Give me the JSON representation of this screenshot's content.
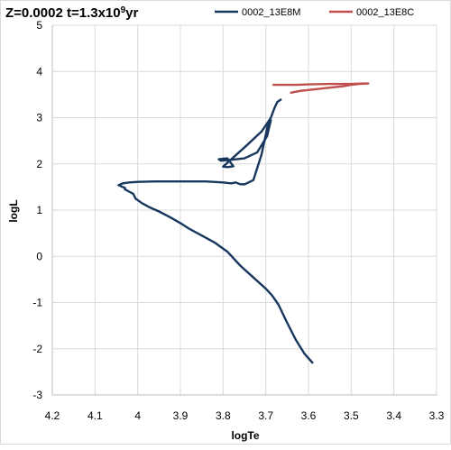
{
  "chart_data": {
    "type": "line",
    "title": "Z=0.0002  t=1.3x10",
    "title_exp": "9",
    "title_suffix": "yr",
    "xlabel": "logTe",
    "ylabel": "logL",
    "xlim": [
      4.2,
      3.3
    ],
    "ylim": [
      -3,
      5
    ],
    "x_reversed": true,
    "grid": true,
    "legend_position": "top",
    "x_ticks": [
      "4.2",
      "4.1",
      "4",
      "3.9",
      "3.8",
      "3.7",
      "3.6",
      "3.5",
      "3.4",
      "3.3"
    ],
    "x_tick_values": [
      4.2,
      4.1,
      4.0,
      3.9,
      3.8,
      3.7,
      3.6,
      3.5,
      3.4,
      3.3
    ],
    "y_ticks": [
      "5",
      "4",
      "3",
      "2",
      "1",
      "0",
      "-1",
      "-2",
      "-3"
    ],
    "y_tick_values": [
      5,
      4,
      3,
      2,
      1,
      0,
      -1,
      -2,
      -3
    ],
    "series": [
      {
        "name": "0002_13E8M",
        "color": "#17375e",
        "x": [
          3.591,
          3.61,
          3.63,
          3.652,
          3.67,
          3.685,
          3.7,
          3.73,
          3.76,
          3.79,
          3.82,
          3.85,
          3.88,
          3.9,
          3.925,
          3.95,
          3.97,
          3.99,
          4.005,
          4.01,
          4.02,
          4.03,
          4.03,
          4.045,
          4.035,
          4.02,
          4.0,
          3.96,
          3.92,
          3.88,
          3.84,
          3.8,
          3.781,
          3.77,
          3.76,
          3.749,
          3.729,
          3.71,
          3.695,
          3.688,
          3.697,
          3.72,
          3.75,
          3.79,
          3.805,
          3.81,
          3.79,
          3.776,
          3.788,
          3.8,
          3.745,
          3.71,
          3.695,
          3.688,
          3.68,
          3.673,
          3.665
        ],
        "y": [
          -2.3,
          -2.1,
          -1.8,
          -1.4,
          -1.05,
          -0.85,
          -0.7,
          -0.45,
          -0.2,
          0.1,
          0.3,
          0.45,
          0.6,
          0.72,
          0.85,
          0.97,
          1.05,
          1.15,
          1.25,
          1.35,
          1.4,
          1.45,
          1.48,
          1.54,
          1.58,
          1.6,
          1.61,
          1.62,
          1.62,
          1.62,
          1.62,
          1.6,
          1.58,
          1.6,
          1.56,
          1.56,
          1.65,
          2.2,
          2.85,
          2.95,
          2.6,
          2.25,
          2.12,
          2.08,
          2.07,
          2.1,
          2.12,
          1.95,
          1.93,
          1.94,
          2.4,
          2.7,
          2.9,
          3.0,
          3.2,
          3.34,
          3.39
        ]
      },
      {
        "name": "0002_13E8C",
        "color": "#c0504d",
        "x": [
          3.641,
          3.62,
          3.6,
          3.56,
          3.52,
          3.5,
          3.48,
          3.46,
          3.47,
          3.5,
          3.55,
          3.6,
          3.625,
          3.655,
          3.682
        ],
        "y": [
          3.54,
          3.58,
          3.6,
          3.64,
          3.68,
          3.71,
          3.73,
          3.74,
          3.74,
          3.73,
          3.73,
          3.72,
          3.71,
          3.71,
          3.71
        ]
      }
    ]
  }
}
